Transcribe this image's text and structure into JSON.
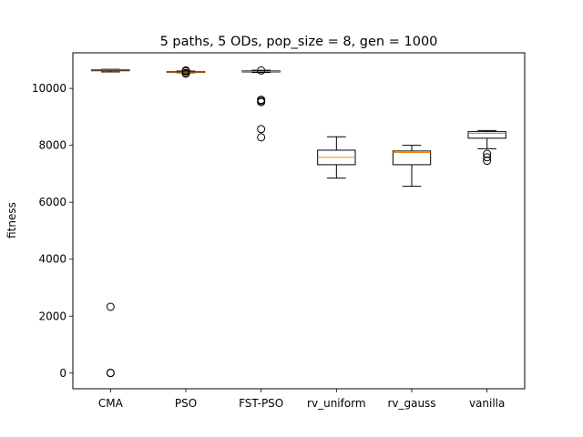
{
  "chart_data": {
    "type": "boxplot",
    "title": "5 paths, 5 ODs, pop_size = 8, gen = 1000",
    "xlabel": "",
    "ylabel": "fitness",
    "ylim": [
      -550,
      11250
    ],
    "yticks": [
      0,
      2000,
      4000,
      6000,
      8000,
      10000
    ],
    "grid": false,
    "legend": "none",
    "colors": {
      "box": "#000000",
      "median": "#ff7f0e",
      "flier": "#000000"
    },
    "categories": [
      "CMA",
      "PSO",
      "FST-PSO",
      "rv_uniform",
      "rv_gauss",
      "vanilla"
    ],
    "boxes": [
      {
        "label": "CMA",
        "whisker_low": 10580,
        "q1": 10620,
        "median": 10645,
        "q3": 10660,
        "whisker_high": 10670,
        "fliers": [
          2330,
          10,
          0
        ]
      },
      {
        "label": "PSO",
        "whisker_low": 10550,
        "q1": 10560,
        "median": 10575,
        "q3": 10590,
        "whisker_high": 10610,
        "fliers": [
          10520,
          10540,
          10600,
          10630
        ]
      },
      {
        "label": "FST-PSO",
        "whisker_low": 10560,
        "q1": 10580,
        "median": 10600,
        "q3": 10615,
        "whisker_high": 10640,
        "fliers": [
          9600,
          9560,
          9520,
          8570,
          8280,
          10630
        ]
      },
      {
        "label": "rv_uniform",
        "whisker_low": 6850,
        "q1": 7320,
        "median": 7580,
        "q3": 7830,
        "whisker_high": 8300,
        "fliers": []
      },
      {
        "label": "rv_gauss",
        "whisker_low": 6560,
        "q1": 7320,
        "median": 7750,
        "q3": 7800,
        "whisker_high": 8000,
        "fliers": []
      },
      {
        "label": "vanilla",
        "whisker_low": 7880,
        "q1": 8250,
        "median": 8420,
        "q3": 8480,
        "whisker_high": 8520,
        "fliers": [
          7700,
          7580,
          7460
        ]
      }
    ]
  }
}
